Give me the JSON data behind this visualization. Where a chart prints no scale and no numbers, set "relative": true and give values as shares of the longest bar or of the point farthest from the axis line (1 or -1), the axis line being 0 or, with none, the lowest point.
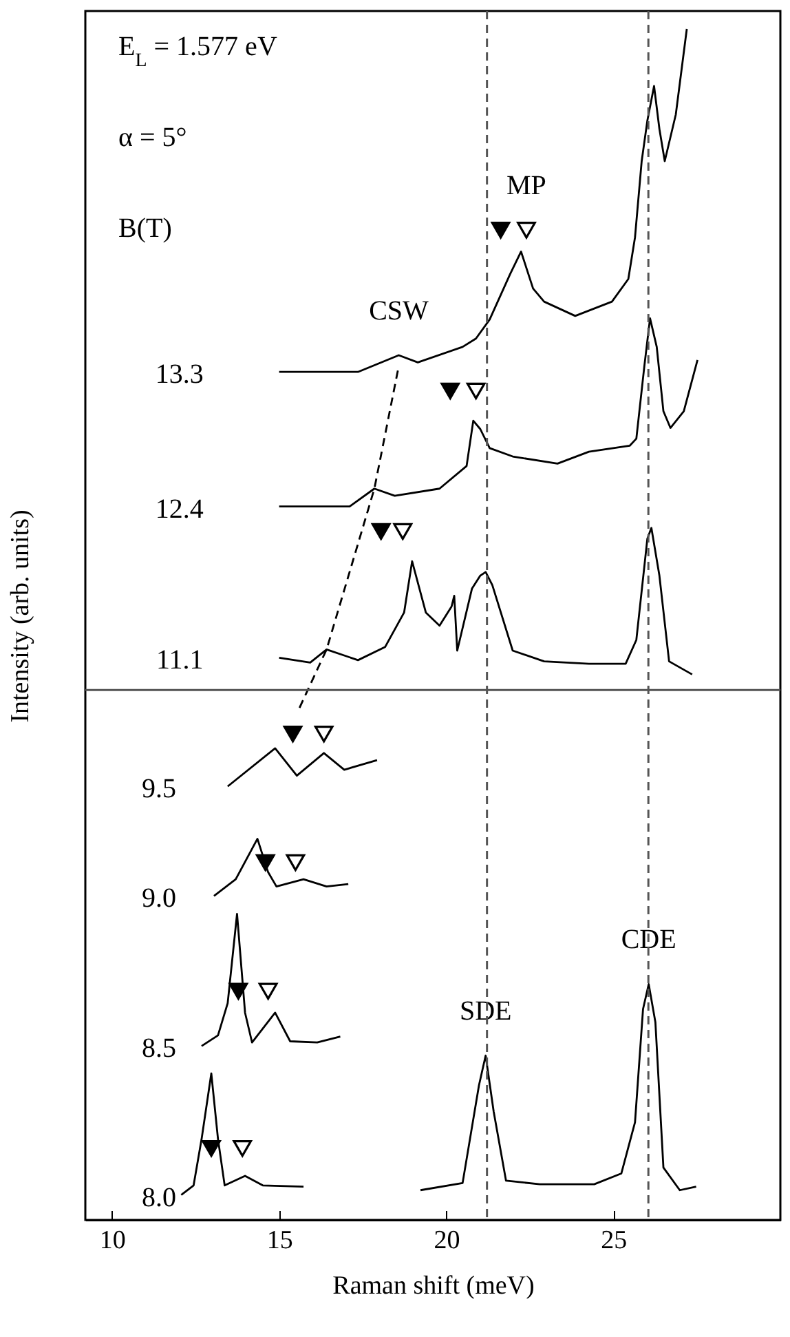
{
  "chart_data": {
    "type": "line",
    "relative": true,
    "xlabel": "Raman shift  (meV)",
    "ylabel": "Intensity  (arb. units)",
    "legend_title": "B(T)",
    "xlim": [
      9.2,
      30
    ],
    "xticks": [
      10,
      15,
      20,
      25
    ],
    "grid": false,
    "marker": "none",
    "line_style": "solid",
    "annotations": [
      "E$_{L}$ = 1.577 eV",
      "α = 5°",
      {
        "text": "CSW",
        "x": 18.58,
        "y": 0.726
      },
      {
        "text": "MP",
        "x": 22.4,
        "y": 0.831
      },
      {
        "text": "SDE",
        "x": 21.18,
        "y": 0.138
      },
      {
        "text": "CDE",
        "x": 26.06,
        "y": 0.198
      }
    ],
    "ref_lines": [
      {
        "axis": "x",
        "value": 21.22,
        "color": "#555555",
        "line_style": "dashed"
      },
      {
        "axis": "x",
        "value": 26.05,
        "color": "#555555",
        "line_style": "dashed"
      },
      {
        "axis": "y",
        "value": 0.445,
        "color": "#555555",
        "line_style": "solid"
      }
    ],
    "series": [
      {
        "name": "13.3",
        "color": "#000000",
        "x": [
          15.0,
          17.36,
          18.58,
          19.15,
          20.49,
          20.89,
          21.3,
          21.91,
          22.24,
          22.6,
          22.93,
          23.86,
          24.96,
          25.45,
          25.65,
          25.85,
          26.02,
          26.22,
          26.38,
          26.54,
          26.87,
          27.2
        ],
        "values": [
          0.712,
          0.712,
          0.726,
          0.72,
          0.733,
          0.74,
          0.756,
          0.794,
          0.813,
          0.782,
          0.771,
          0.759,
          0.771,
          0.79,
          0.825,
          0.889,
          0.923,
          0.952,
          0.916,
          0.889,
          0.928,
          1.0
        ]
      },
      {
        "name": "12.4",
        "color": "#000000",
        "x": [
          15.0,
          17.11,
          17.85,
          18.46,
          19.8,
          20.61,
          20.81,
          21.02,
          21.3,
          21.99,
          23.33,
          24.27,
          25.49,
          25.69,
          25.93,
          26.1,
          26.3,
          26.5,
          26.71,
          27.11,
          27.52
        ],
        "values": [
          0.599,
          0.599,
          0.614,
          0.608,
          0.614,
          0.633,
          0.671,
          0.664,
          0.648,
          0.641,
          0.635,
          0.645,
          0.65,
          0.656,
          0.717,
          0.757,
          0.733,
          0.679,
          0.665,
          0.679,
          0.722
        ]
      },
      {
        "name": "11.1",
        "color": "#000000",
        "x": [
          15.0,
          15.93,
          16.42,
          17.36,
          18.17,
          18.74,
          18.98,
          19.39,
          19.8,
          20.16,
          20.24,
          20.33,
          20.77,
          21.02,
          21.18,
          21.38,
          21.99,
          22.93,
          24.27,
          25.37,
          25.69,
          26.02,
          26.14,
          26.38,
          26.67,
          27.36
        ],
        "values": [
          0.472,
          0.468,
          0.479,
          0.47,
          0.481,
          0.51,
          0.553,
          0.51,
          0.499,
          0.515,
          0.524,
          0.478,
          0.53,
          0.541,
          0.544,
          0.533,
          0.478,
          0.469,
          0.467,
          0.467,
          0.487,
          0.572,
          0.581,
          0.541,
          0.469,
          0.458
        ]
      },
      {
        "name": "9.5",
        "color": "#000000",
        "x": [
          13.46,
          14.88,
          15.53,
          16.34,
          16.95,
          17.93
        ],
        "values": [
          0.364,
          0.396,
          0.373,
          0.392,
          0.378,
          0.386
        ]
      },
      {
        "name": "9.0",
        "color": "#000000",
        "x": [
          13.05,
          13.7,
          14.35,
          14.67,
          14.92,
          15.73,
          16.42,
          17.07
        ],
        "values": [
          0.272,
          0.286,
          0.32,
          0.292,
          0.28,
          0.286,
          0.28,
          0.282
        ]
      },
      {
        "name": "8.5",
        "color": "#000000",
        "x": [
          12.68,
          13.17,
          13.46,
          13.74,
          13.98,
          14.19,
          14.88,
          15.33,
          16.14,
          16.83
        ],
        "values": [
          0.146,
          0.155,
          0.182,
          0.257,
          0.174,
          0.149,
          0.174,
          0.15,
          0.149,
          0.154
        ]
      },
      {
        "name": "8.0",
        "color": "#000000",
        "x": [
          12.07,
          12.44,
          12.68,
          12.97,
          13.17,
          13.37,
          13.98,
          14.51,
          15.73,
          17.5,
          19.23,
          20.49,
          20.98,
          21.18,
          21.42,
          21.79,
          22.8,
          24.43,
          25.24,
          25.65,
          25.89,
          26.06,
          26.26,
          26.5,
          26.99,
          27.48
        ],
        "values": [
          0.021,
          0.029,
          0.068,
          0.123,
          0.068,
          0.029,
          0.037,
          0.029,
          0.028,
          null,
          0.025,
          0.031,
          0.113,
          0.138,
          0.091,
          0.033,
          0.03,
          0.03,
          0.039,
          0.082,
          0.177,
          0.198,
          0.166,
          0.044,
          0.025,
          0.028
        ]
      },
      {
        "color": "#000000",
        "line_style": "dashed",
        "x": [
          18.58,
          17.85,
          16.42,
          15.61
        ],
        "values": [
          0.717,
          0.614,
          0.479,
          0.43
        ]
      },
      {
        "type": "scatter",
        "marker": "triangle",
        "color": "#000000",
        "x": [
          21.63,
          20.12,
          18.05,
          15.41,
          14.59,
          13.78,
          12.97
        ],
        "values": [
          0.831,
          0.696,
          0.578,
          0.408,
          0.3,
          0.192,
          0.06
        ]
      },
      {
        "type": "scatter",
        "marker": "triangle",
        "color": "#ffffff",
        "x": [
          22.4,
          20.89,
          18.7,
          16.34,
          15.49,
          14.67,
          13.9
        ],
        "values": [
          0.831,
          0.696,
          0.578,
          0.408,
          0.3,
          0.192,
          0.06
        ]
      }
    ]
  }
}
